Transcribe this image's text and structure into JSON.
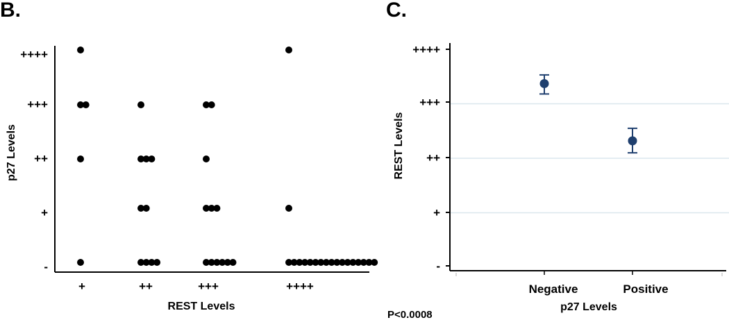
{
  "chart_data": [
    {
      "label": "B.",
      "type": "scatter",
      "xlabel": "REST Levels",
      "ylabel": "p27 Levels",
      "x_categories": [
        "+",
        "++",
        "+++",
        "++++"
      ],
      "y_categories": [
        "-",
        "+",
        "++",
        "+++",
        "++++"
      ],
      "grid": false,
      "points": [
        {
          "x": "+",
          "y": "++++",
          "count": 1
        },
        {
          "x": "+",
          "y": "+++",
          "count": 2
        },
        {
          "x": "+",
          "y": "++",
          "count": 1
        },
        {
          "x": "+",
          "y": "-",
          "count": 1
        },
        {
          "x": "++",
          "y": "+++",
          "count": 1
        },
        {
          "x": "++",
          "y": "++",
          "count": 3
        },
        {
          "x": "++",
          "y": "+",
          "count": 2
        },
        {
          "x": "++",
          "y": "-",
          "count": 4
        },
        {
          "x": "+++",
          "y": "+++",
          "count": 2
        },
        {
          "x": "+++",
          "y": "++",
          "count": 1
        },
        {
          "x": "+++",
          "y": "+",
          "count": 3
        },
        {
          "x": "+++",
          "y": "-",
          "count": 6
        },
        {
          "x": "++++",
          "y": "++++",
          "count": 1
        },
        {
          "x": "++++",
          "y": "+",
          "count": 1
        },
        {
          "x": "++++",
          "y": "-",
          "count": 17
        }
      ]
    },
    {
      "label": "C.",
      "type": "scatter",
      "xlabel": "p27 Levels",
      "ylabel": "REST Levels",
      "x_categories": [
        "Negative",
        "Positive"
      ],
      "y_categories": [
        "-",
        "+",
        "++",
        "+++",
        "++++"
      ],
      "grid": true,
      "point_color": "#1f3f6e",
      "points": [
        {
          "x": "Negative",
          "y": 3.37,
          "low": 3.18,
          "high": 3.53
        },
        {
          "x": "Positive",
          "y": 2.32,
          "low": 2.1,
          "high": 2.55
        }
      ],
      "annotation": "P<0.0008"
    }
  ]
}
